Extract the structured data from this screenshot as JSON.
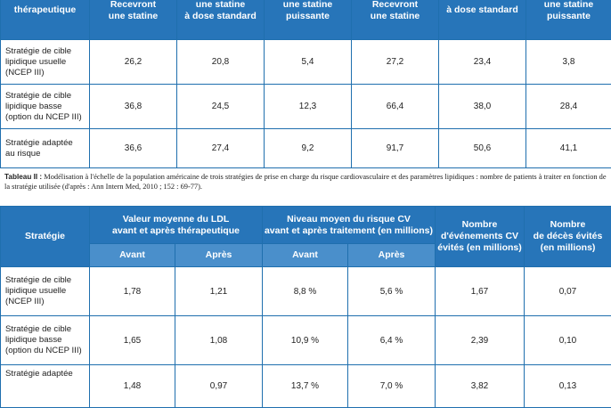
{
  "table1": {
    "headers": [
      "thérapeutique",
      "Recevront\nune statine",
      "une statine\nà dose standard",
      "une statine\npuissante",
      "Recevront\nune statine",
      "à dose standard",
      "une statine\npuissante"
    ],
    "rows": [
      {
        "label": "Stratégie de cible\nlipidique usuelle\n(NCEP III)",
        "values": [
          "26,2",
          "20,8",
          "5,4",
          "27,2",
          "23,4",
          "3,8"
        ]
      },
      {
        "label": "Stratégie de cible\nlipidique basse\n(option du NCEP III)",
        "values": [
          "36,8",
          "24,5",
          "12,3",
          "66,4",
          "38,0",
          "28,4"
        ]
      },
      {
        "label": "Stratégie adaptée\nau risque",
        "values": [
          "36,6",
          "27,4",
          "9,2",
          "91,7",
          "50,6",
          "41,1"
        ]
      }
    ]
  },
  "caption": {
    "label": "Tableau II :",
    "text": " Modélisation à l'échelle de la population américaine de trois stratégies de prise en charge du risque cardiovasculaire et des paramètres lipidiques : nombre de patients à traiter en fonction de la stratégie utilisée (d'après : Ann Intern Med, 2010 ; 152 : 69-77)."
  },
  "table2": {
    "header_strategy": "Stratégie",
    "header_ldl": "Valeur moyenne du LDL\navant et après thérapeutique",
    "header_risk": "Niveau moyen du risque CV\navant et après traitement (en millions)",
    "header_events": "Nombre\nd'événements CV\névités (en millions)",
    "header_deaths": "Nombre\nde décès évités\n(en millions)",
    "sub_before": "Avant",
    "sub_after": "Après",
    "rows": [
      {
        "label": "Stratégie de cible\nlipidique usuelle\n(NCEP III)",
        "values": [
          "1,78",
          "1,21",
          "8,8 %",
          "5,6 %",
          "1,67",
          "0,07"
        ]
      },
      {
        "label": "Stratégie de cible\nlipidique basse\n(option du NCEP III)",
        "values": [
          "1,65",
          "1,08",
          "10,9 %",
          "6,4 %",
          "2,39",
          "0,10"
        ]
      },
      {
        "label": "Stratégie adaptée",
        "values": [
          "1,48",
          "0,97",
          "13,7 %",
          "7,0 %",
          "3,82",
          "0,13"
        ]
      }
    ]
  }
}
